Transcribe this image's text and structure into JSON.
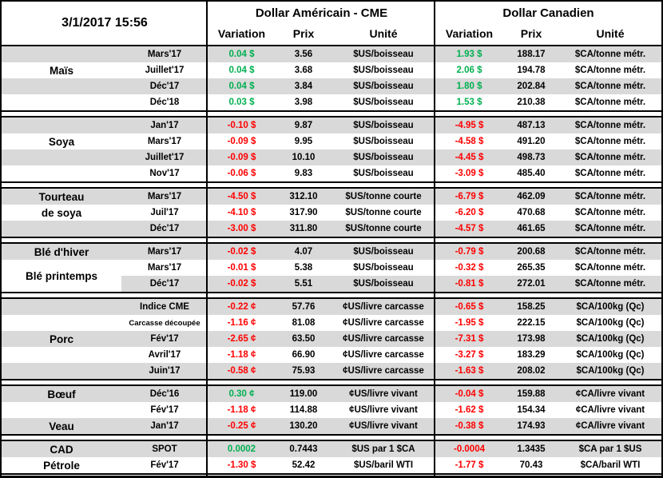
{
  "meta": {
    "timestamp": "3/1/2017 15:56"
  },
  "header": {
    "usd_group_label": "Dollar Américain - CME",
    "cad_group_label": "Dollar Canadien",
    "columns": [
      "Variation",
      "Prix",
      "Unité"
    ]
  },
  "colors": {
    "positive": "#00B050",
    "negative": "#FF0000",
    "row_shade": "#D9D9D9",
    "border": "#000000"
  },
  "sections": [
    {
      "id": "mais",
      "label_cells": [
        {
          "text": "Maïs",
          "row": 1,
          "span": 1
        }
      ],
      "rows": [
        {
          "month": "Mars'17",
          "us_var": "0.04 $",
          "us_prix": "3.56",
          "us_unit": "$US/boisseau",
          "ca_var": "1.93 $",
          "ca_prix": "188.17",
          "ca_unit": "$CA/tonne métr."
        },
        {
          "month": "Juillet'17",
          "us_var": "0.04 $",
          "us_prix": "3.68",
          "us_unit": "$US/boisseau",
          "ca_var": "2.06 $",
          "ca_prix": "194.78",
          "ca_unit": "$CA/tonne métr."
        },
        {
          "month": "Déc'17",
          "us_var": "0.04 $",
          "us_prix": "3.84",
          "us_unit": "$US/boisseau",
          "ca_var": "1.80 $",
          "ca_prix": "202.84",
          "ca_unit": "$CA/tonne métr."
        },
        {
          "month": "Déc'18",
          "us_var": "0.03 $",
          "us_prix": "3.98",
          "us_unit": "$US/boisseau",
          "ca_var": "1.53 $",
          "ca_prix": "210.38",
          "ca_unit": "$CA/tonne métr."
        }
      ]
    },
    {
      "id": "soya",
      "label_cells": [
        {
          "text": "Soya",
          "row": 1,
          "span": 1
        }
      ],
      "rows": [
        {
          "month": "Jan'17",
          "us_var": "-0.10 $",
          "us_prix": "9.87",
          "us_unit": "$US/boisseau",
          "ca_var": "-4.95 $",
          "ca_prix": "487.13",
          "ca_unit": "$CA/tonne métr."
        },
        {
          "month": "Mars'17",
          "us_var": "-0.09 $",
          "us_prix": "9.95",
          "us_unit": "$US/boisseau",
          "ca_var": "-4.58 $",
          "ca_prix": "491.20",
          "ca_unit": "$CA/tonne métr."
        },
        {
          "month": "Juillet'17",
          "us_var": "-0.09 $",
          "us_prix": "10.10",
          "us_unit": "$US/boisseau",
          "ca_var": "-4.45 $",
          "ca_prix": "498.73",
          "ca_unit": "$CA/tonne métr."
        },
        {
          "month": "Nov'17",
          "us_var": "-0.06 $",
          "us_prix": "9.83",
          "us_unit": "$US/boisseau",
          "ca_var": "-3.09 $",
          "ca_prix": "485.40",
          "ca_unit": "$CA/tonne métr."
        }
      ]
    },
    {
      "id": "tourteau-de-soya",
      "label_cells": [
        {
          "text": "Tourteau",
          "row": 0,
          "span": 1
        },
        {
          "text": "de soya",
          "row": 1,
          "span": 1
        }
      ],
      "rows": [
        {
          "month": "Mars'17",
          "us_var": "-4.50 $",
          "us_prix": "312.10",
          "us_unit": "$US/tonne courte",
          "ca_var": "-6.79 $",
          "ca_prix": "462.09",
          "ca_unit": "$CA/tonne métr."
        },
        {
          "month": "Juil'17",
          "us_var": "-4.10 $",
          "us_prix": "317.90",
          "us_unit": "$US/tonne courte",
          "ca_var": "-6.20 $",
          "ca_prix": "470.68",
          "ca_unit": "$CA/tonne métr."
        },
        {
          "month": "Déc'17",
          "us_var": "-3.00 $",
          "us_prix": "311.80",
          "us_unit": "$US/tonne courte",
          "ca_var": "-4.57 $",
          "ca_prix": "461.65",
          "ca_unit": "$CA/tonne métr."
        }
      ]
    },
    {
      "id": "ble",
      "label_cells": [
        {
          "text": "Blé d'hiver",
          "row": 0,
          "span": 1
        },
        {
          "text": "Blé printemps",
          "row": 1,
          "span": 2
        }
      ],
      "rows": [
        {
          "month": "Mars'17",
          "us_var": "-0.02 $",
          "us_prix": "4.07",
          "us_unit": "$US/boisseau",
          "ca_var": "-0.79 $",
          "ca_prix": "200.68",
          "ca_unit": "$CA/tonne métr."
        },
        {
          "month": "Mars'17",
          "us_var": "-0.01 $",
          "us_prix": "5.38",
          "us_unit": "$US/boisseau",
          "ca_var": "-0.32 $",
          "ca_prix": "265.35",
          "ca_unit": "$CA/tonne métr."
        },
        {
          "month": "Déc'17",
          "us_var": "-0.02 $",
          "us_prix": "5.51",
          "us_unit": "$US/boisseau",
          "ca_var": "-0.81 $",
          "ca_prix": "272.01",
          "ca_unit": "$CA/tonne métr."
        }
      ]
    },
    {
      "id": "porc",
      "label_cells": [
        {
          "text": "Porc",
          "row": 2,
          "span": 1
        }
      ],
      "rows": [
        {
          "month": "Indice CME",
          "us_var": "-0.22 ¢",
          "us_prix": "57.76",
          "us_unit": "¢US/livre carcasse",
          "ca_var": "-0.65 $",
          "ca_prix": "158.25",
          "ca_unit": "$CA/100kg (Qc)"
        },
        {
          "month": "Carcasse découpée",
          "month_small": true,
          "us_var": "-1.16 ¢",
          "us_prix": "81.08",
          "us_unit": "¢US/livre carcasse",
          "ca_var": "-1.95 $",
          "ca_prix": "222.15",
          "ca_unit": "$CA/100kg (Qc)"
        },
        {
          "month": "Fév'17",
          "us_var": "-2.65 ¢",
          "us_prix": "63.50",
          "us_unit": "¢US/livre carcasse",
          "ca_var": "-7.31 $",
          "ca_prix": "173.98",
          "ca_unit": "$CA/100kg (Qc)"
        },
        {
          "month": "Avril'17",
          "us_var": "-1.18 ¢",
          "us_prix": "66.90",
          "us_unit": "¢US/livre carcasse",
          "ca_var": "-3.27 $",
          "ca_prix": "183.29",
          "ca_unit": "$CA/100kg (Qc)"
        },
        {
          "month": "Juin'17",
          "us_var": "-0.58 ¢",
          "us_prix": "75.93",
          "us_unit": "¢US/livre carcasse",
          "ca_var": "-1.63 $",
          "ca_prix": "208.02",
          "ca_unit": "$CA/100kg (Qc)"
        }
      ]
    },
    {
      "id": "boeuf-veau",
      "label_cells": [
        {
          "text": "Bœuf",
          "row": 0,
          "span": 1
        },
        {
          "text": "Veau",
          "row": 2,
          "span": 1
        }
      ],
      "rows": [
        {
          "month": "Déc'16",
          "us_var": "0.30 ¢",
          "us_prix": "119.00",
          "us_unit": "¢US/livre vivant",
          "ca_var": "-0.04 $",
          "ca_prix": "159.88",
          "ca_unit": "¢CA/livre vivant"
        },
        {
          "month": "Fév'17",
          "us_var": "-1.18 ¢",
          "us_prix": "114.88",
          "us_unit": "¢US/livre vivant",
          "ca_var": "-1.62 $",
          "ca_prix": "154.34",
          "ca_unit": "¢CA/livre vivant"
        },
        {
          "month": "Jan'17",
          "us_var": "-0.25 ¢",
          "us_prix": "130.20",
          "us_unit": "¢US/livre vivant",
          "ca_var": "-0.38 $",
          "ca_prix": "174.93",
          "ca_unit": "¢CA/livre vivant"
        }
      ]
    },
    {
      "id": "cad-petrole",
      "label_cells": [
        {
          "text": "CAD",
          "row": 0,
          "span": 1
        },
        {
          "text": "Pétrole",
          "row": 1,
          "span": 1
        }
      ],
      "rows": [
        {
          "month": "SPOT",
          "us_var": "0.0002",
          "us_prix": "0.7443",
          "us_unit": "$US par 1 $CA",
          "ca_var": "-0.0004",
          "ca_prix": "1.3435",
          "ca_unit": "$CA par 1 $US"
        },
        {
          "month": "Fév'17",
          "us_var": "-1.30 $",
          "us_prix": "52.42",
          "us_unit": "$US/baril WTI",
          "ca_var": "-1.77 $",
          "ca_prix": "70.43",
          "ca_unit": "$CA/baril WTI"
        }
      ]
    }
  ]
}
